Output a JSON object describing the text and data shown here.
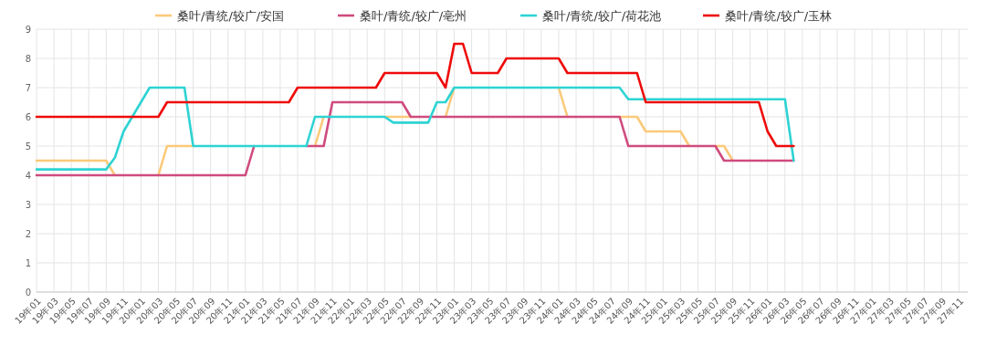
{
  "chart_data": {
    "type": "line",
    "categories": [
      "19年01",
      null,
      "19年03",
      null,
      "19年05",
      null,
      "19年07",
      null,
      "19年09",
      null,
      "19年11",
      null,
      "20年01",
      null,
      "20年03",
      null,
      "20年05",
      null,
      "20年07",
      null,
      "20年09",
      null,
      "20年11",
      null,
      "21年01",
      null,
      "21年03",
      null,
      "21年05",
      null,
      "21年07",
      null,
      "21年09",
      null,
      "21年11",
      null,
      "22年01",
      null,
      "22年03",
      null,
      "22年05",
      null,
      "22年07",
      null,
      "22年09",
      null,
      "22年11",
      null,
      "23年01",
      null,
      "23年03",
      null,
      "23年05",
      null,
      "23年07",
      null,
      "23年09",
      null,
      "23年11",
      null,
      "24年01",
      null,
      "24年03",
      null,
      "24年05",
      null,
      "24年07",
      null,
      "24年09",
      null,
      "24年11",
      null,
      "25年01",
      null,
      "25年03",
      null,
      "25年05",
      null,
      "25年07",
      null,
      "25年09",
      null,
      "25年11",
      null,
      "26年01",
      null,
      "26年03",
      null,
      "26年05",
      null,
      "26年07",
      null,
      "26年09",
      null,
      "26年11",
      null,
      "27年01",
      null,
      "27年03",
      null,
      "27年05",
      null,
      "27年07",
      null,
      "27年09",
      null,
      "27年11",
      null
    ],
    "series": [
      {
        "name": "桑叶/青统/较广/安国",
        "color": "#fbc97a",
        "values": [
          4.5,
          4.5,
          4.5,
          4.5,
          4.5,
          4.5,
          4.5,
          4.5,
          4.5,
          4,
          null,
          null,
          null,
          null,
          4,
          5,
          5,
          5,
          5,
          null,
          null,
          null,
          null,
          null,
          null,
          null,
          null,
          null,
          null,
          null,
          null,
          null,
          5,
          6,
          null,
          null,
          null,
          null,
          null,
          null,
          6,
          6,
          6,
          6,
          null,
          null,
          null,
          6,
          7,
          null,
          null,
          null,
          null,
          null,
          null,
          null,
          null,
          null,
          null,
          null,
          7,
          6,
          null,
          null,
          null,
          null,
          null,
          6,
          6,
          6,
          5.5,
          5.5,
          5.5,
          5.5,
          5.5,
          5,
          null,
          null,
          5,
          5,
          4.5,
          null,
          null,
          null,
          null,
          null,
          null,
          null,
          null,
          null,
          null,
          null,
          null,
          null,
          null,
          null,
          null,
          null,
          null,
          null,
          null,
          null,
          null,
          null,
          null,
          null,
          null,
          null
        ]
      },
      {
        "name": "桑叶/青统/较广/亳州",
        "color": "#cf4b7e",
        "values": [
          4,
          4,
          4,
          4,
          4,
          4,
          4,
          4,
          4,
          4,
          4,
          4,
          4,
          4,
          4,
          4,
          4,
          4,
          4,
          4,
          4,
          4,
          4,
          4,
          4,
          5,
          null,
          null,
          null,
          null,
          null,
          5,
          5,
          5,
          6.5,
          6.5,
          6.5,
          6.5,
          6.5,
          6.5,
          6.5,
          6.5,
          6.5,
          6,
          6,
          6,
          6,
          6,
          6,
          6,
          6,
          6,
          6,
          6,
          6,
          6,
          6,
          6,
          6,
          6,
          6,
          6,
          6,
          6,
          6,
          6,
          6,
          6,
          5,
          5,
          5,
          5,
          5,
          5,
          5,
          5,
          5,
          5,
          5,
          4.5,
          4.5,
          4.5,
          4.5,
          4.5,
          4.5,
          4.5,
          4.5,
          4.5,
          null,
          null,
          null,
          null,
          null,
          null,
          null,
          null,
          null,
          null,
          null,
          null,
          null,
          null,
          null,
          null,
          null,
          null,
          null,
          null
        ]
      },
      {
        "name": "桑叶/青统/较广/荷花池",
        "color": "#2ed3d3",
        "values": [
          4.2,
          4.2,
          4.2,
          4.2,
          4.2,
          4.2,
          4.2,
          4.2,
          4.2,
          4.6,
          5.5,
          6,
          6.5,
          7,
          7,
          7,
          7,
          7,
          5,
          5,
          5,
          5,
          5,
          5,
          5,
          5,
          5,
          5,
          5,
          5,
          5,
          5,
          6,
          6,
          6,
          6,
          6,
          6,
          6,
          6,
          6,
          5.8,
          5.8,
          5.8,
          5.8,
          5.8,
          6.5,
          6.5,
          7,
          7,
          7,
          7,
          7,
          7,
          7,
          7,
          7,
          7,
          7,
          7,
          7,
          7,
          7,
          7,
          7,
          7,
          7,
          7,
          6.6,
          6.6,
          6.6,
          6.6,
          6.6,
          6.6,
          6.6,
          6.6,
          6.6,
          6.6,
          6.6,
          6.6,
          6.6,
          6.6,
          6.6,
          6.6,
          6.6,
          6.6,
          6.6,
          4.5,
          null,
          null,
          null,
          null,
          null,
          null,
          null,
          null,
          null,
          null,
          null,
          null,
          null,
          null,
          null,
          null,
          null,
          null,
          null,
          null
        ]
      },
      {
        "name": "桑叶/青统/较广/玉林",
        "color": "#ee0a0a",
        "values": [
          6,
          6,
          6,
          6,
          6,
          6,
          6,
          6,
          6,
          6,
          6,
          6,
          6,
          6,
          6,
          6.5,
          6.5,
          6.5,
          6.5,
          6.5,
          6.5,
          6.5,
          6.5,
          6.5,
          6.5,
          6.5,
          6.5,
          6.5,
          6.5,
          6.5,
          7,
          7,
          7,
          7,
          7,
          7,
          7,
          7,
          7,
          7,
          7.5,
          7.5,
          7.5,
          7.5,
          7.5,
          7.5,
          7.5,
          7,
          8.5,
          8.5,
          7.5,
          7.5,
          7.5,
          7.5,
          8,
          8,
          8,
          8,
          8,
          8,
          8,
          7.5,
          7.5,
          7.5,
          7.5,
          7.5,
          7.5,
          7.5,
          7.5,
          7.5,
          6.5,
          6.5,
          6.5,
          6.5,
          6.5,
          6.5,
          6.5,
          6.5,
          6.5,
          6.5,
          6.5,
          6.5,
          6.5,
          6.5,
          5.5,
          5,
          5,
          5,
          null,
          null,
          null,
          null,
          null,
          null,
          null,
          null,
          null,
          null,
          null,
          null,
          null,
          null,
          null,
          null,
          null,
          null,
          null,
          null
        ]
      }
    ],
    "ylim": [
      0,
      9
    ],
    "yticks": [
      0,
      1,
      2,
      3,
      4,
      5,
      6,
      7,
      8,
      9
    ],
    "grid": true,
    "legend": "top",
    "marker": "none",
    "line_style": "solid"
  }
}
